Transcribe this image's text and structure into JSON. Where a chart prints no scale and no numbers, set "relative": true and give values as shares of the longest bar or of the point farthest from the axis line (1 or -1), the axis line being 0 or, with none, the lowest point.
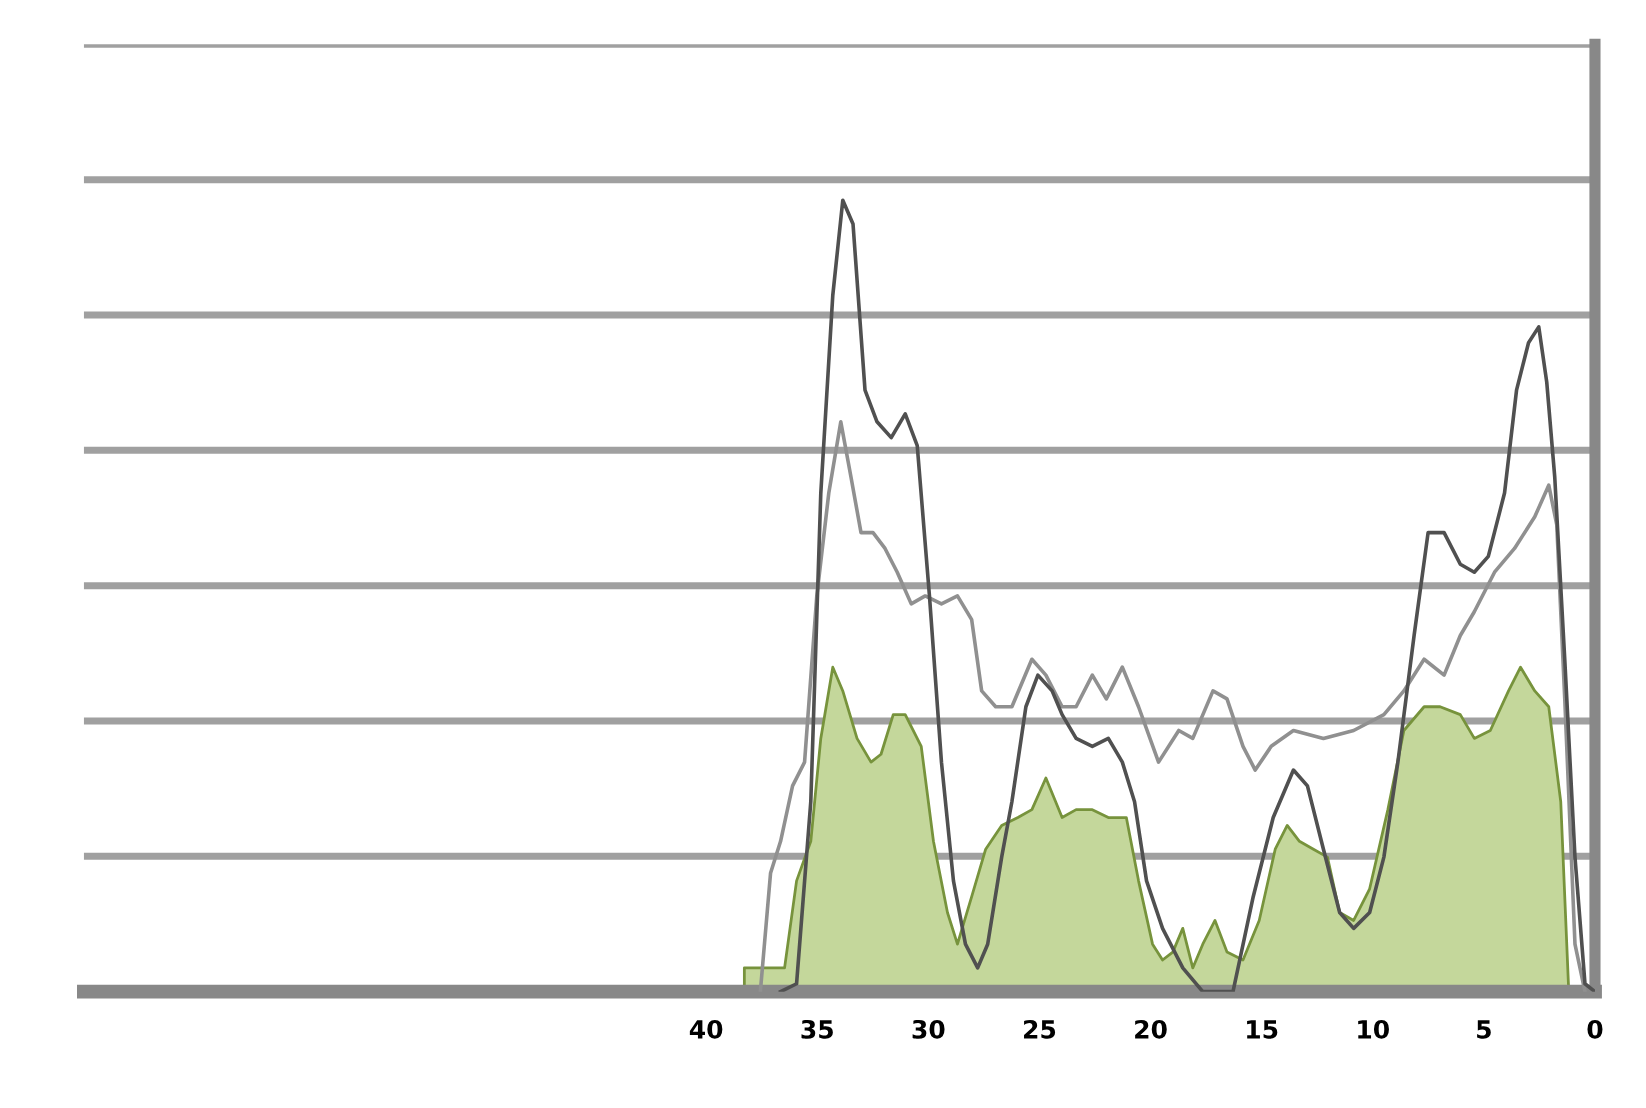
{
  "chart_data": {
    "type": "line",
    "relative": true,
    "xlim": [
      68,
      0
    ],
    "xticks": [
      40,
      35,
      30,
      25,
      20,
      15,
      10,
      5,
      0
    ],
    "grid": "y",
    "legend": false,
    "marker": "none",
    "line_style": "solid",
    "series": [
      {
        "type": "area",
        "color": "#c4d79b",
        "x": [
          38.28,
          37.74,
          37.1,
          36.47,
          35.93,
          35.29,
          34.84,
          34.3,
          33.85,
          33.21,
          32.58,
          32.13,
          31.58,
          31.04,
          30.32,
          29.77,
          29.14,
          28.69,
          28.05,
          27.42,
          26.7,
          25.97,
          25.34,
          24.71,
          23.98,
          23.35,
          22.62,
          21.9,
          21.09,
          20.54,
          19.91,
          19.46,
          19.0,
          18.55,
          18.1,
          17.65,
          17.1,
          16.56,
          15.84,
          15.11,
          14.39,
          13.85,
          13.3,
          12.67,
          12.04,
          11.49,
          10.86,
          10.14,
          9.32,
          8.6,
          7.69,
          6.97,
          6.06,
          5.43,
          4.71,
          3.89,
          3.35,
          2.71,
          2.08,
          1.54,
          1.18
        ],
        "values": [
          0.03,
          0.03,
          0.03,
          0.03,
          0.14,
          0.19,
          0.32,
          0.41,
          0.38,
          0.32,
          0.29,
          0.3,
          0.35,
          0.35,
          0.31,
          0.19,
          0.1,
          0.06,
          0.12,
          0.18,
          0.21,
          0.22,
          0.23,
          0.27,
          0.22,
          0.23,
          0.23,
          0.22,
          0.22,
          0.14,
          0.06,
          0.04,
          0.05,
          0.08,
          0.03,
          0.06,
          0.09,
          0.05,
          0.04,
          0.09,
          0.18,
          0.21,
          0.19,
          0.18,
          0.17,
          0.1,
          0.09,
          0.13,
          0.23,
          0.33,
          0.36,
          0.36,
          0.35,
          0.32,
          0.33,
          0.38,
          0.41,
          0.38,
          0.36,
          0.24,
          0
        ]
      },
      {
        "color": "#909090",
        "x": [
          37.56,
          37.1,
          36.65,
          36.11,
          35.57,
          35.02,
          34.48,
          33.94,
          33.48,
          33.03,
          32.49,
          31.95,
          31.4,
          30.77,
          30.14,
          29.41,
          28.69,
          28.05,
          27.6,
          26.97,
          26.24,
          25.34,
          24.71,
          23.98,
          23.35,
          22.62,
          21.99,
          21.27,
          20.54,
          19.64,
          18.73,
          18.1,
          17.19,
          16.56,
          15.84,
          15.29,
          14.57,
          13.57,
          12.22,
          10.86,
          9.5,
          8.6,
          7.69,
          6.79,
          6.06,
          5.43,
          4.52,
          3.62,
          2.71,
          2.08,
          1.72,
          1.36,
          0.9,
          0.45
        ],
        "values": [
          0,
          0.15,
          0.19,
          0.26,
          0.29,
          0.5,
          0.63,
          0.72,
          0.65,
          0.58,
          0.58,
          0.56,
          0.53,
          0.49,
          0.5,
          0.49,
          0.5,
          0.47,
          0.38,
          0.36,
          0.36,
          0.42,
          0.4,
          0.36,
          0.36,
          0.4,
          0.37,
          0.41,
          0.36,
          0.29,
          0.33,
          0.32,
          0.38,
          0.37,
          0.31,
          0.28,
          0.31,
          0.33,
          0.32,
          0.33,
          0.35,
          0.38,
          0.42,
          0.4,
          0.45,
          0.48,
          0.53,
          0.56,
          0.6,
          0.64,
          0.59,
          0.37,
          0.06,
          0
        ]
      },
      {
        "color": "#505050",
        "x": [
          36.65,
          35.93,
          35.29,
          34.84,
          34.3,
          33.85,
          33.39,
          32.85,
          32.31,
          31.67,
          31.04,
          30.5,
          29.95,
          29.41,
          28.87,
          28.33,
          27.78,
          27.33,
          26.7,
          26.24,
          25.61,
          25.07,
          24.43,
          23.98,
          23.35,
          22.62,
          21.9,
          21.27,
          20.72,
          20.18,
          19.46,
          18.55,
          17.65,
          16.29,
          15.38,
          14.48,
          13.57,
          12.94,
          12.22,
          11.49,
          10.86,
          10.14,
          9.5,
          8.87,
          8.14,
          7.51,
          6.79,
          6.06,
          5.43,
          4.8,
          4.07,
          3.53,
          2.99,
          2.53,
          2.17,
          1.81,
          1.36,
          0.9,
          0.45,
          0
        ],
        "values": [
          0,
          0.01,
          0.24,
          0.63,
          0.88,
          1.0,
          0.97,
          0.76,
          0.72,
          0.7,
          0.73,
          0.69,
          0.5,
          0.29,
          0.14,
          0.06,
          0.03,
          0.06,
          0.17,
          0.24,
          0.36,
          0.4,
          0.38,
          0.35,
          0.32,
          0.31,
          0.32,
          0.29,
          0.24,
          0.14,
          0.08,
          0.03,
          0,
          0,
          0.12,
          0.22,
          0.28,
          0.26,
          0.18,
          0.1,
          0.08,
          0.1,
          0.17,
          0.29,
          0.45,
          0.58,
          0.58,
          0.54,
          0.53,
          0.55,
          0.63,
          0.76,
          0.82,
          0.84,
          0.77,
          0.65,
          0.42,
          0.17,
          0.01,
          0
        ]
      }
    ]
  }
}
